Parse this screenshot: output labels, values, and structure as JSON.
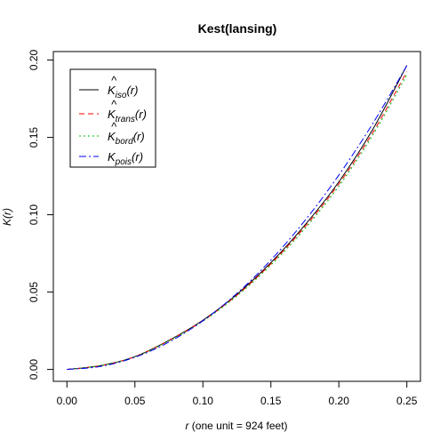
{
  "chart_data": {
    "type": "line",
    "title": "Kest(lansing)",
    "xlabel_var": "r",
    "xlabel_rest": " (one unit = 924 feet)",
    "ylabel_var": "K",
    "ylabel_arg": "(r)",
    "xlim": [
      -0.01,
      0.26
    ],
    "ylim": [
      -0.0077,
      0.2055
    ],
    "x_ticks": [
      0.0,
      0.05,
      0.1,
      0.15,
      0.2,
      0.25
    ],
    "x_tick_labels": [
      "0.00",
      "0.05",
      "0.10",
      "0.15",
      "0.20",
      "0.25"
    ],
    "y_ticks": [
      0.0,
      0.05,
      0.1,
      0.15,
      0.2
    ],
    "y_tick_labels": [
      "0.00",
      "0.05",
      "0.10",
      "0.15",
      "0.20"
    ],
    "grid": false,
    "legend_position": "top-left",
    "x": [
      0.0,
      0.025,
      0.05,
      0.075,
      0.1,
      0.125,
      0.15,
      0.175,
      0.2,
      0.225,
      0.25
    ],
    "series": [
      {
        "name": "iso",
        "hat": true,
        "color": "#000000",
        "dash": "none",
        "values": [
          0.0,
          0.0025,
          0.0083,
          0.0188,
          0.0318,
          0.0485,
          0.069,
          0.0933,
          0.1213,
          0.1553,
          0.1965
        ]
      },
      {
        "name": "trans",
        "hat": true,
        "color": "#ff0000",
        "dash": "6,4",
        "values": [
          0.0,
          0.0025,
          0.0082,
          0.0186,
          0.0315,
          0.048,
          0.0683,
          0.0922,
          0.12,
          0.1532,
          0.1925
        ]
      },
      {
        "name": "bord",
        "hat": true,
        "color": "#00bb00",
        "dash": "2,3",
        "values": [
          0.0,
          0.0025,
          0.0081,
          0.0184,
          0.0312,
          0.0475,
          0.0675,
          0.091,
          0.1185,
          0.1515,
          0.1905
        ]
      },
      {
        "name": "pois",
        "hat": false,
        "color": "#0000ff",
        "dash": "8,3,2,3",
        "values": [
          0.0,
          0.00196,
          0.00785,
          0.01767,
          0.03142,
          0.04909,
          0.07069,
          0.09621,
          0.12566,
          0.15904,
          0.19635
        ]
      }
    ]
  }
}
